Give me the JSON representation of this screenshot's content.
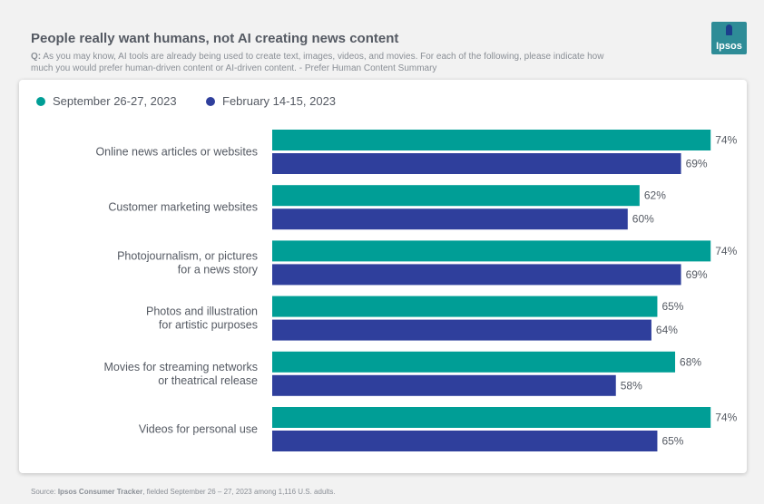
{
  "header": {
    "title": "People really want humans, not AI creating news content",
    "question_prefix": "Q:",
    "question_text": "As you may know, AI tools are already being used to create text, images, videos, and movies. For each of the following, please indicate how much you would prefer human-driven content or AI-driven content. - Prefer Human Content Summary"
  },
  "logo": {
    "text": "Ipsos",
    "color": "#2e8c97"
  },
  "footer": {
    "source_prefix": "Source:",
    "source_name": "Ipsos Consumer Tracker",
    "source_rest": ", fielded September 26 – 27, 2023 among 1,116 U.S. adults."
  },
  "chart_data": {
    "type": "bar",
    "orientation": "horizontal",
    "title": "People really want humans, not AI creating news content",
    "xlabel": "",
    "ylabel": "",
    "xlim": [
      0,
      80
    ],
    "grid": false,
    "legend_position": "top-left",
    "categories": [
      [
        "Online news articles or websites"
      ],
      [
        "Customer marketing websites"
      ],
      [
        "Photojournalism, or pictures",
        "for a news story"
      ],
      [
        "Photos and illustration",
        "for artistic purposes"
      ],
      [
        "Movies for streaming networks",
        "or theatrical release"
      ],
      [
        "Videos for personal use"
      ]
    ],
    "series": [
      {
        "name": "September 26-27, 2023",
        "color": "#009e96",
        "values": [
          74,
          62,
          74,
          65,
          68,
          74
        ]
      },
      {
        "name": "February 14-15, 2023",
        "color": "#2f3f9c",
        "values": [
          69,
          60,
          69,
          64,
          58,
          65
        ]
      }
    ],
    "value_suffix": "%"
  }
}
